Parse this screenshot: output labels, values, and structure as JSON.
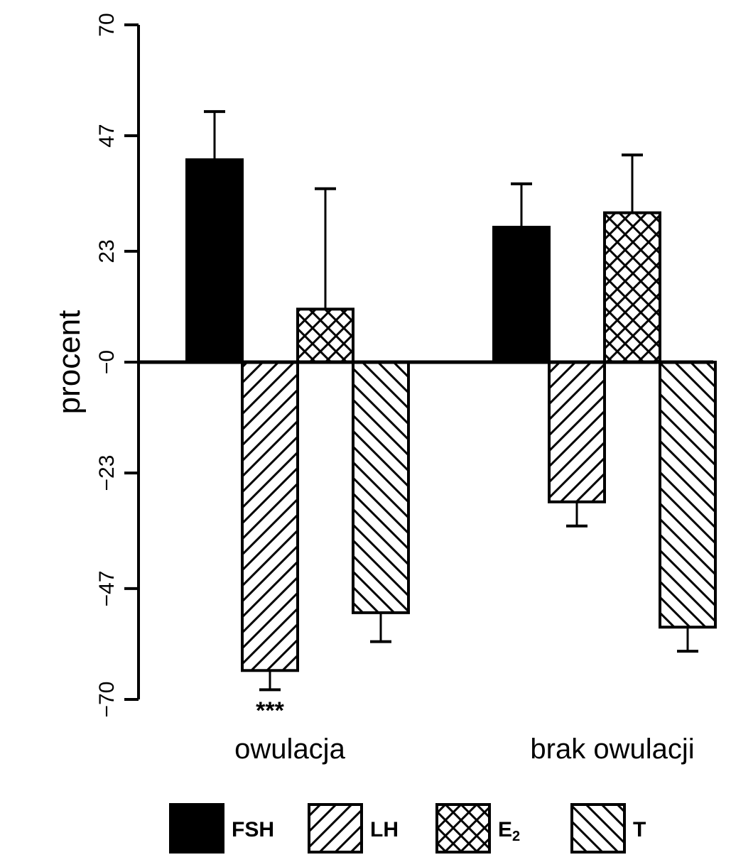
{
  "chart_data": {
    "type": "bar",
    "ylabel": "procent",
    "xlabel": "",
    "ylim": [
      -70,
      70
    ],
    "yticks": [
      {
        "value": 70,
        "label": "70"
      },
      {
        "value": 47,
        "label": "47"
      },
      {
        "value": 23,
        "label": "23"
      },
      {
        "value": 0,
        "label": "−0"
      },
      {
        "value": -23,
        "label": "−23"
      },
      {
        "value": -47,
        "label": "−47"
      },
      {
        "value": -70,
        "label": "−70"
      }
    ],
    "categories": [
      "owulacja",
      "brak owulacji"
    ],
    "series": [
      {
        "name": "FSH",
        "pattern": "solid",
        "values": [
          42,
          28
        ],
        "errors": [
          10,
          9
        ]
      },
      {
        "name": "LH",
        "pattern": "diag-right",
        "values": [
          -64,
          -29
        ],
        "errors": [
          4,
          5
        ]
      },
      {
        "name": "E2",
        "pattern": "crosshatch",
        "values": [
          11,
          31
        ],
        "errors": [
          25,
          12
        ]
      },
      {
        "name": "T",
        "pattern": "diag-left",
        "values": [
          -52,
          -55
        ],
        "errors": [
          6,
          5
        ]
      }
    ],
    "annotations": [
      {
        "text": "***",
        "category": "owulacja",
        "series": "LH"
      }
    ],
    "legend": {
      "position": "bottom",
      "items": [
        {
          "label": "FSH",
          "sub": ""
        },
        {
          "label": "LH",
          "sub": ""
        },
        {
          "label": "E",
          "sub": "2"
        },
        {
          "label": "T",
          "sub": ""
        }
      ]
    },
    "grid": false,
    "colors": {
      "fill": "#000000",
      "background": "#ffffff"
    }
  }
}
